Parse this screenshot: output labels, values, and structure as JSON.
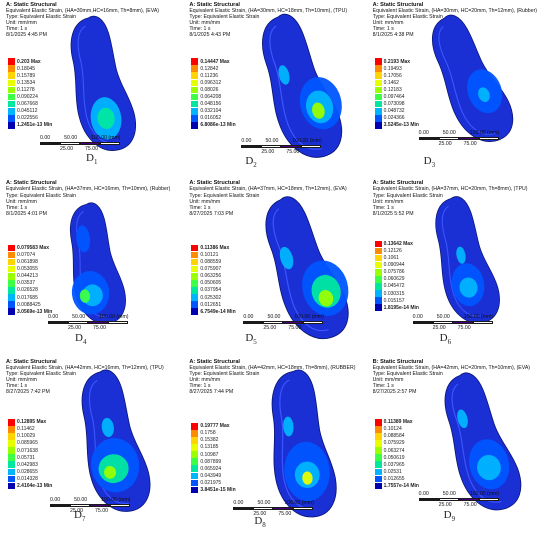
{
  "colors": [
    "#ff0000",
    "#ff8c00",
    "#ffd400",
    "#e8ff00",
    "#9aff00",
    "#3dff45",
    "#00e8a0",
    "#00b5ff",
    "#0055ff",
    "#0000b0"
  ],
  "body_color": "#1a2fd4",
  "panels": [
    {
      "label_letter": "D",
      "label_sub": "1",
      "title": "A: Static Structural",
      "subtitle": "Equivalent Elastic Strain, (HA=30mm,HC=16mm, Th=8mm), (EVA)",
      "type": "Type: Equivalent Elastic Strain",
      "unit": "Unit: mm/mm",
      "time": "Time: 1 s",
      "date": "8/1/2025 4:45 PM",
      "max": "0.203 Max",
      "values": [
        "0.18045",
        "0.15789",
        "0.13534",
        "0.11278",
        "0.090224",
        "0.067668",
        "0.045112",
        "0.022556"
      ],
      "min": "1.2451e-13 Min",
      "ruler_top": [
        "0.00",
        "50.00",
        "100.00 (mm)"
      ],
      "ruler_bottom": [
        "25.00",
        "75.00"
      ]
    },
    {
      "label_letter": "D",
      "label_sub": "2",
      "title": "A: Static Structural",
      "subtitle": "Equivalent Elastic Strain, (HA=30mm, HC=18mm, Th=10mm), (TPU)",
      "type": "Type: Equivalent Elastic Strain",
      "unit": "Unit: mm/mm",
      "time": "Time: 1 s",
      "date": "8/1/2025 4:43 PM",
      "max": "0.14447 Max",
      "values": [
        "0.12842",
        "0.11236",
        "0.096312",
        "0.08026",
        "0.064208",
        "0.048156",
        "0.032104",
        "0.016052"
      ],
      "min": "6.8086e-13 Min",
      "ruler_top": [
        "0.00",
        "50.00",
        "100.00 (mm)"
      ],
      "ruler_bottom": [
        "25.00",
        "75.00"
      ]
    },
    {
      "label_letter": "D",
      "label_sub": "3",
      "title": "A: Static Structural",
      "subtitle": "Equivalent Elastic Strain, (HA=30mm, HC=20mm, Th=12mm), (Rubber)",
      "type": "Type: Equivalent Elastic Strain",
      "unit": "Unit: mm/mm",
      "time": "Time: 1 s",
      "date": "8/1/2025 4:38 PM",
      "max": "0.2193 Max",
      "values": [
        "0.19493",
        "0.17056",
        "0.1462",
        "0.12183",
        "0.097464",
        "0.073098",
        "0.048732",
        "0.024366"
      ],
      "min": "3.5245e-13 Min",
      "ruler_top": [
        "0.00",
        "50.00",
        "100.00 (mm)"
      ],
      "ruler_bottom": [
        "25.00",
        "75.00"
      ]
    },
    {
      "label_letter": "D",
      "label_sub": "4",
      "title": "A: Static Structural",
      "subtitle": "Equivalent Elastic Strain, (HA=37mm, HC=16mm, Th=10mm), (Rubber)",
      "type": "Type: Equivalent Elastic Strain",
      "unit": "Unit: mm/mm",
      "time": "Time: 1 s",
      "date": "8/1/2025 4:01 PM",
      "max": "0.079583 Max",
      "values": [
        "0.07074",
        "0.061898",
        "0.053055",
        "0.044213",
        "0.03537",
        "0.026528",
        "0.017685",
        "0.0088425"
      ],
      "min": "3.0569e-13 Min",
      "ruler_top": [
        "0.00",
        "50.00",
        "100.00 (mm)"
      ],
      "ruler_bottom": [
        "25.00",
        "75.00"
      ]
    },
    {
      "label_letter": "D",
      "label_sub": "5",
      "title": "A: Static Structural",
      "subtitle": "Equivalent Elastic Strain, (HA=37mm, HC=18mm, Th=12mm), (EVA)",
      "type": "Type: Equivalent Elastic Strain",
      "unit": "Unit: mm/mm",
      "time": "Time: 1 s",
      "date": "8/27/2025 7:03 PM",
      "max": "0.11386 Max",
      "values": [
        "0.10121",
        "0.088559",
        "0.075907",
        "0.063256",
        "0.050605",
        "0.037954",
        "0.025302",
        "0.012651"
      ],
      "min": "6.7549e-14 Min",
      "ruler_top": [
        "0.00",
        "50.00",
        "100.00 (mm)"
      ],
      "ruler_bottom": [
        "25.00",
        "75.00"
      ]
    },
    {
      "label_letter": "D",
      "label_sub": "6",
      "title": "A: Static Structural",
      "subtitle": "Equivalent Elastic Strain, (HA=37mm, HC=20mm, Th=8mm), (TPU)",
      "type": "Type: Equivalent Elastic Strain",
      "unit": "Unit: mm/mm",
      "time": "Time: 1 s",
      "date": "8/1/2025 5:52 PM",
      "max": "0.13642 Max",
      "values": [
        "0.12126",
        "0.1061",
        "0.090944",
        "0.075786",
        "0.060629",
        "0.045472",
        "0.030315",
        "0.015157"
      ],
      "min": "1.8195e-14 Min",
      "ruler_top": [
        "0.00",
        "50.00",
        "100.00 (mm)"
      ],
      "ruler_bottom": [
        "25.00",
        "75.00"
      ]
    },
    {
      "label_letter": "D",
      "label_sub": "7",
      "title": "A: Static Structural",
      "subtitle": "Equivalent Elastic Strain, (HA=42mm, HC=16mm, Th=12mm), (TPU)",
      "type": "Type: Equivalent Elastic Strain",
      "unit": "Unit: mm/mm",
      "time": "Time: 1 s",
      "date": "8/27/2025 7:42 PM",
      "max": "0.12895 Max",
      "values": [
        "0.11462",
        "0.10029",
        "0.085965",
        "0.071638",
        "0.05731",
        "0.042983",
        "0.028655",
        "0.014328"
      ],
      "min": "2.4104e-13 Min",
      "ruler_top": [
        "0.00",
        "50.00",
        "100.00 (mm)"
      ],
      "ruler_bottom": [
        "25.00",
        "75.00"
      ]
    },
    {
      "label_letter": "D",
      "label_sub": "8",
      "title": "A: Static Structural",
      "subtitle": "Equivalent Elastic Strain, (HA=42mm, HC=18mm, Th=8mm), (RUBBER)",
      "type": "Type: Equivalent Elastic Strain",
      "unit": "Unit: mm/mm",
      "time": "Time: 1 s",
      "date": "8/27/2025 7:44 PM",
      "max": "0.19777 Max",
      "values": [
        "0.1758",
        "0.15382",
        "0.13185",
        "0.10987",
        "0.087899",
        "0.065924",
        "0.043949",
        "0.021975"
      ],
      "min": "3.8451e-15 Min",
      "ruler_top": [
        "0.00",
        "50.00",
        "100.00 (mm)"
      ],
      "ruler_bottom": [
        "25.00",
        "75.00"
      ]
    },
    {
      "label_letter": "D",
      "label_sub": "9",
      "title": "B: Static Structural",
      "subtitle": "Equivalent Elastic Strain, (HA=42mm, HC=20mm, Th=10mm), (EVA)",
      "type": "Type: Equivalent Elastic Strain",
      "unit": "Unit: mm/mm",
      "time": "Time: 1 s",
      "date": "8/27/2025 2:57 PM",
      "max": "0.11389 Max",
      "values": [
        "0.10124",
        "0.088584",
        "0.075929",
        "0.063274",
        "0.050619",
        "0.037965",
        "0.02531",
        "0.012655"
      ],
      "min": "1.7557e-14 Min",
      "ruler_top": [
        "0.00",
        "50.00",
        "100.00 (mm)"
      ],
      "ruler_bottom": [
        "25.00",
        "75.00"
      ]
    }
  ]
}
